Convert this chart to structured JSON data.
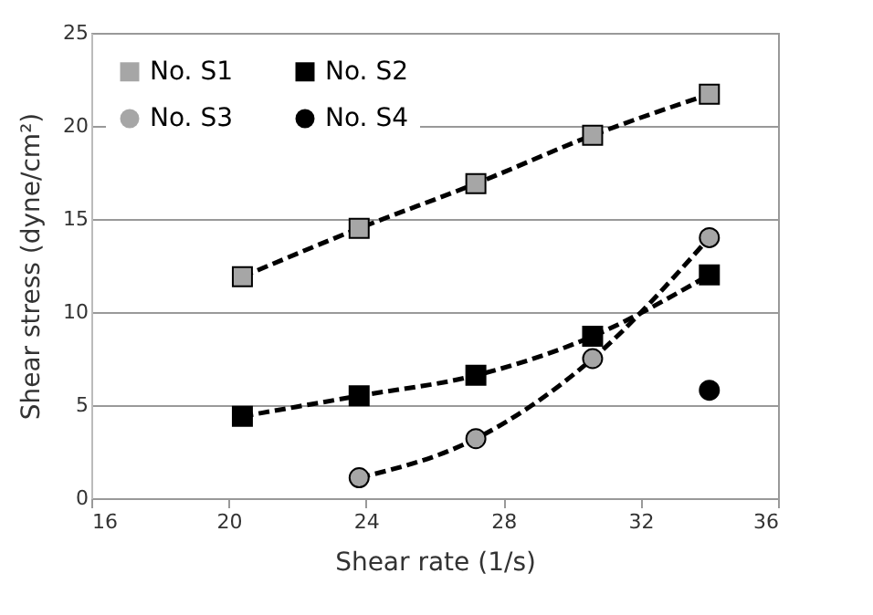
{
  "chart_data": {
    "type": "line",
    "xlabel": "Shear rate (1/s)",
    "ylabel": "Shear stress (dyne/cm²)",
    "xlim": [
      16,
      36
    ],
    "xticks": [
      16,
      20,
      24,
      28,
      32,
      36
    ],
    "ylim": [
      0,
      25
    ],
    "yticks": [
      0,
      5,
      10,
      15,
      20,
      25
    ],
    "grid": "y",
    "legend": "top left",
    "line_style": "dashed",
    "series": [
      {
        "name": "No. S1",
        "color": "#a6a6a6",
        "marker": "square",
        "x": [
          20.4,
          23.8,
          27.2,
          30.6,
          34.0
        ],
        "values": [
          11.9,
          14.5,
          16.9,
          19.5,
          21.7
        ]
      },
      {
        "name": "No. S2",
        "color": "#000000",
        "marker": "square",
        "x": [
          20.4,
          23.8,
          27.2,
          30.6,
          34.0
        ],
        "values": [
          4.4,
          5.5,
          6.6,
          8.7,
          12.0
        ]
      },
      {
        "name": "No. S3",
        "color": "#a6a6a6",
        "marker": "circle",
        "x": [
          23.8,
          27.2,
          30.6,
          34.0
        ],
        "values": [
          1.1,
          3.2,
          7.5,
          14.0
        ]
      },
      {
        "name": "No. S4",
        "type": "scatter",
        "color": "#000000",
        "marker": "circle",
        "x": [
          34.0
        ],
        "values": [
          5.8
        ]
      }
    ]
  }
}
